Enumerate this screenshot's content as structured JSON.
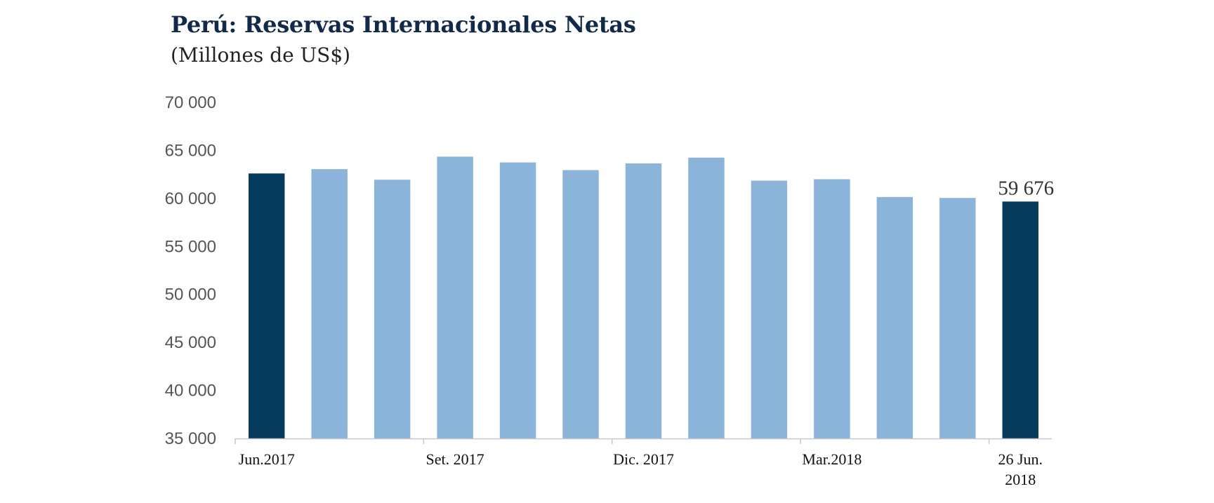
{
  "chart_data": {
    "type": "bar",
    "title": "Perú: Reservas Internacionales Netas",
    "subtitle": "(Millones de US$)",
    "xlabel": "",
    "ylabel": "",
    "ylim": [
      35000,
      70000
    ],
    "yticks": [
      "35 000",
      "40 000",
      "45 000",
      "50 000",
      "55 000",
      "60 000",
      "65 000",
      "70 000"
    ],
    "grid": false,
    "categories": [
      "Jun.2017",
      "",
      "",
      "Set. 2017",
      "",
      "",
      "Dic. 2017",
      "",
      "",
      "Mar.2018",
      "",
      "",
      "26 Jun. 2018"
    ],
    "values": [
      62600,
      63050,
      61950,
      64350,
      63750,
      62950,
      63650,
      64250,
      61850,
      62000,
      60150,
      60050,
      59676
    ],
    "highlight": [
      0,
      12
    ],
    "colors": {
      "highlight": "#063b5e",
      "normal": "#8ab4d9",
      "axis": "#c8c8c8"
    },
    "x_labels": [
      {
        "index": 0,
        "lines": [
          "Jun.2017"
        ]
      },
      {
        "index": 3,
        "lines": [
          "Set. 2017"
        ]
      },
      {
        "index": 6,
        "lines": [
          "Dic. 2017"
        ]
      },
      {
        "index": 9,
        "lines": [
          "Mar.2018"
        ]
      },
      {
        "index": 12,
        "lines": [
          "26 Jun.",
          "2018"
        ]
      }
    ],
    "data_labels": [
      {
        "index": 12,
        "text": "59 676"
      }
    ]
  }
}
